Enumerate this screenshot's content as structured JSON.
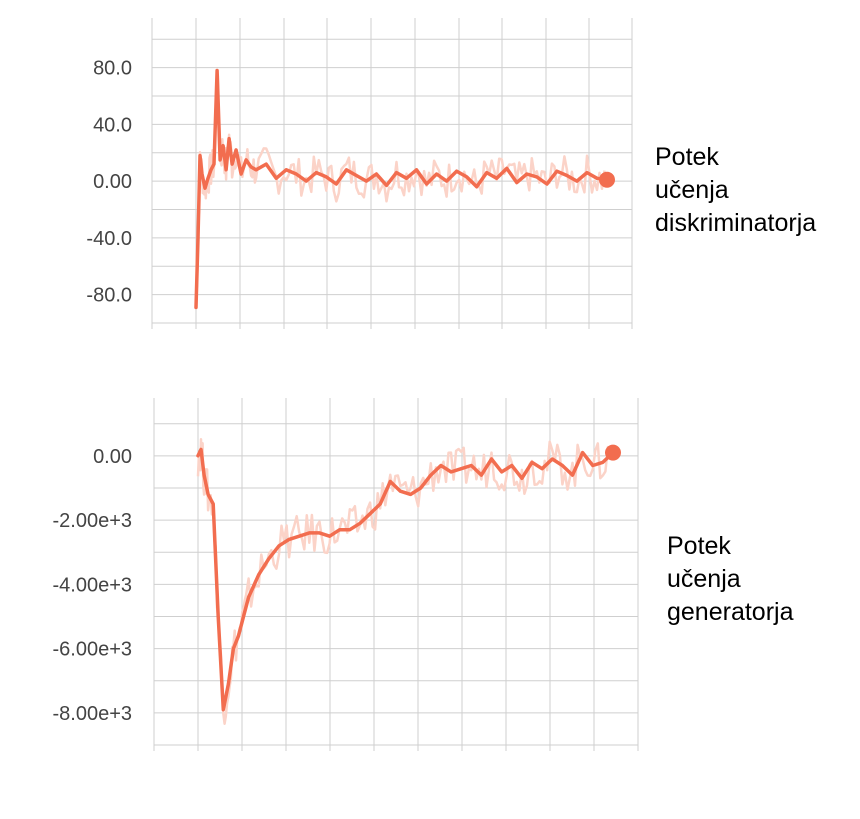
{
  "chart_data": [
    {
      "type": "line",
      "title": "",
      "xlabel": "",
      "ylabel": "",
      "ylim": [
        -100,
        115
      ],
      "yticks": [
        -80,
        -40,
        0,
        40,
        80
      ],
      "ytick_labels": [
        "-80.0",
        "-40.0",
        "0.00",
        "40.0",
        "80.0"
      ],
      "grid": true,
      "series": [
        {
          "color": "#f26d4f",
          "raw_color": "#fbd3c8",
          "x": [
            0,
            2,
            4,
            6,
            9,
            12,
            15,
            18,
            21,
            24,
            27,
            30,
            33,
            36,
            40,
            45,
            50,
            55,
            60,
            70,
            80,
            90,
            100,
            110,
            120,
            130,
            140,
            150,
            160,
            170,
            180,
            190,
            200,
            210,
            220,
            230,
            240,
            250,
            260,
            270,
            280,
            290,
            300,
            310,
            320,
            330,
            340,
            350,
            360,
            370,
            380,
            390,
            400,
            410
          ],
          "values": [
            -89,
            -40,
            18,
            5,
            -5,
            2,
            8,
            12,
            78,
            15,
            25,
            8,
            30,
            12,
            22,
            5,
            15,
            10,
            8,
            12,
            2,
            8,
            5,
            0,
            6,
            3,
            -2,
            8,
            4,
            0,
            5,
            -3,
            6,
            2,
            8,
            -2,
            5,
            0,
            7,
            3,
            -4,
            6,
            2,
            9,
            -1,
            5,
            3,
            -2,
            7,
            4,
            0,
            6,
            2,
            1
          ]
        }
      ]
    },
    {
      "type": "line",
      "title": "",
      "xlabel": "",
      "ylabel": "",
      "ylim": [
        -9000,
        1800
      ],
      "yticks": [
        -8000,
        -6000,
        -4000,
        -2000,
        0
      ],
      "ytick_labels": [
        "-8.00e+3",
        "-6.00e+3",
        "-4.00e+3",
        "-2.00e+3",
        "0.00"
      ],
      "grid": true,
      "series": [
        {
          "color": "#f26d4f",
          "raw_color": "#fbd3c8",
          "x": [
            0,
            3,
            6,
            10,
            15,
            20,
            25,
            30,
            35,
            40,
            45,
            50,
            60,
            70,
            80,
            90,
            100,
            110,
            120,
            130,
            140,
            150,
            160,
            170,
            180,
            190,
            200,
            210,
            220,
            230,
            240,
            250,
            260,
            270,
            280,
            290,
            300,
            310,
            320,
            330,
            340,
            350,
            360,
            370,
            380,
            390,
            400,
            410
          ],
          "values": [
            0,
            200,
            -600,
            -1200,
            -1500,
            -5000,
            -7900,
            -7100,
            -6000,
            -5600,
            -5000,
            -4400,
            -3700,
            -3200,
            -2800,
            -2600,
            -2500,
            -2400,
            -2400,
            -2500,
            -2300,
            -2300,
            -2100,
            -1800,
            -1500,
            -800,
            -1100,
            -1200,
            -1000,
            -600,
            -300,
            -500,
            -400,
            -300,
            -600,
            -100,
            -500,
            -300,
            -700,
            -200,
            -400,
            -100,
            -300,
            -600,
            100,
            -300,
            -200,
            100
          ]
        }
      ]
    }
  ],
  "labels": {
    "top": [
      "Potek",
      "učenja",
      "diskriminatorja"
    ],
    "bottom": [
      "Potek",
      "učenja",
      "generatorja"
    ]
  }
}
